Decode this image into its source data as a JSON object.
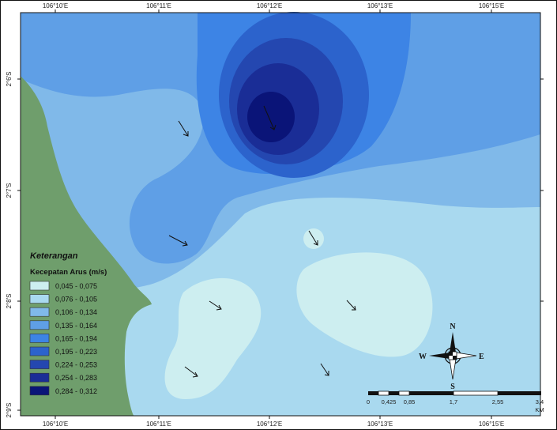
{
  "map": {
    "top_ticks": [
      "106°10'E",
      "106°11'E",
      "106°12'E",
      "106°13'E",
      "106°15'E"
    ],
    "bottom_ticks": [
      "106°10'E",
      "106°11'E",
      "106°12'E",
      "106°13'E",
      "106°15'E"
    ],
    "left_ticks": [
      "2°6'S",
      "2°7'S",
      "2°8'S",
      "2°9'S"
    ],
    "legend": {
      "title": "Keterangan",
      "subtitle": "Kecepatan Arus (m/s)",
      "classes": [
        {
          "label": "0,045 - 0,075",
          "color": "#cdeef0"
        },
        {
          "label": "0,076 - 0,105",
          "color": "#a9d9ef"
        },
        {
          "label": "0,106 - 0,134",
          "color": "#80b9e9"
        },
        {
          "label": "0,135 - 0,164",
          "color": "#5f9fe6"
        },
        {
          "label": "0,165 - 0,194",
          "color": "#3d84e5"
        },
        {
          "label": "0,195 - 0,223",
          "color": "#2c63cc"
        },
        {
          "label": "0,224 - 0,253",
          "color": "#2447b0"
        },
        {
          "label": "0,254 - 0,283",
          "color": "#1a2d96"
        },
        {
          "label": "0,284 - 0,312",
          "color": "#0a1478"
        }
      ]
    },
    "compass": {
      "n": "N",
      "s": "S",
      "e": "E",
      "w": "W"
    },
    "scalebar": {
      "labels": [
        "0",
        "0,425",
        "0,85",
        "1,7",
        "2,55",
        "3,4"
      ],
      "unit": "KM"
    },
    "colors": {
      "land": "#6f9e6c",
      "frame": "#111111"
    }
  }
}
